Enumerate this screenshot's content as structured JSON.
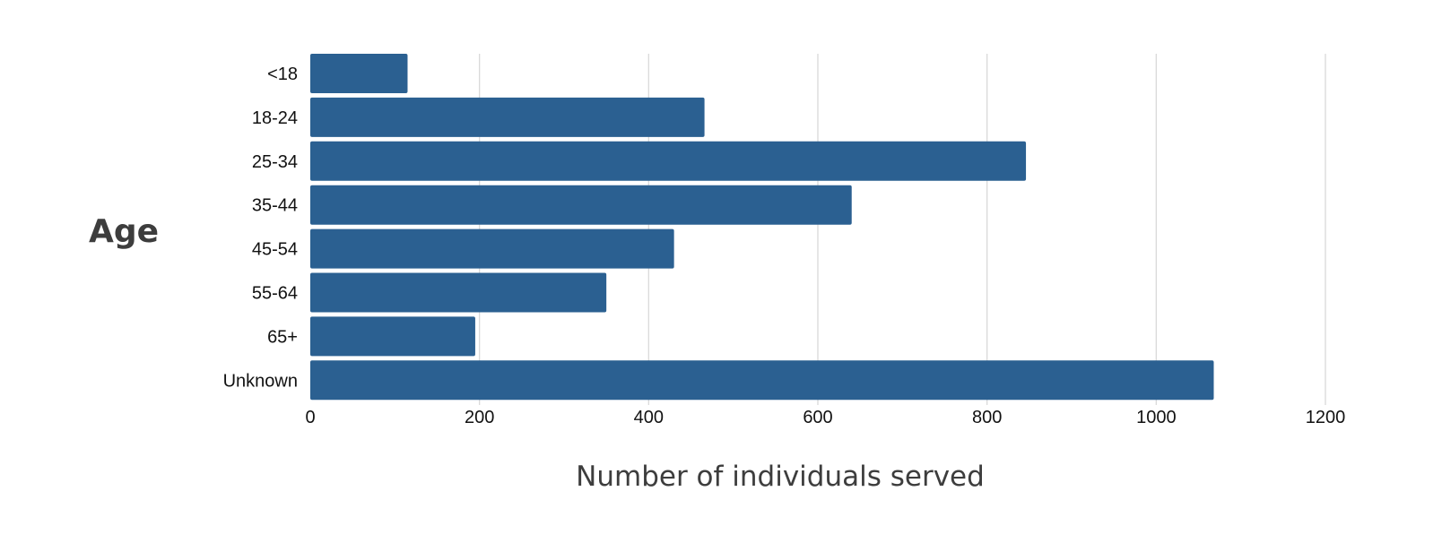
{
  "chart_data": {
    "type": "bar",
    "orientation": "horizontal",
    "categories": [
      "<18",
      "18-24",
      "25-34",
      "35-44",
      "45-54",
      "55-64",
      "65+",
      "Unknown"
    ],
    "values": [
      115,
      466,
      846,
      640,
      430,
      350,
      195,
      1068
    ],
    "xlabel": "Number of individuals served",
    "ylabel": "Age",
    "xlim": [
      0,
      1200
    ],
    "xticks": [
      0,
      200,
      400,
      600,
      800,
      1000,
      1200
    ],
    "grid": "vertical",
    "legend": "none",
    "colors": {
      "bar": "#2b6091",
      "grid": "#d9d9d9",
      "text": "#111111",
      "axis_title": "#3d3d3d"
    }
  }
}
